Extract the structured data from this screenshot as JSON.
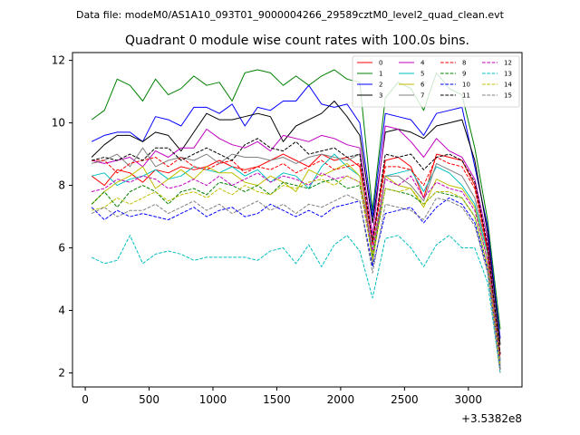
{
  "chart_data": {
    "type": "line",
    "suptitle": "Data file: modeM0/AS1A10_093T01_9000004266_29589cztM0_level2_quad_clean.evt",
    "title": "Quadrant 0 module wise count rates with 100.0s bins.",
    "xlabel": "",
    "ylabel": "",
    "x_offset_label": "+3.5382e8",
    "xlim": [
      -100,
      3420
    ],
    "ylim": [
      1.55,
      12.25
    ],
    "xticks": [
      0,
      500,
      1000,
      1500,
      2000,
      2500,
      3000
    ],
    "yticks": [
      2,
      4,
      6,
      8,
      10,
      12
    ],
    "legend_location": "top-right",
    "x": [
      50,
      150,
      250,
      350,
      450,
      550,
      650,
      750,
      850,
      950,
      1050,
      1150,
      1250,
      1350,
      1450,
      1550,
      1650,
      1750,
      1850,
      1950,
      2050,
      2150,
      2250,
      2350,
      2450,
      2550,
      2650,
      2750,
      2850,
      2950,
      3050,
      3150,
      3250
    ],
    "series": [
      {
        "name": "0",
        "color": "#ff0000",
        "dash": "solid",
        "values": [
          8.3,
          8.0,
          8.5,
          8.4,
          8.1,
          8.5,
          8.4,
          8.6,
          8.5,
          8.6,
          8.8,
          8.6,
          8.5,
          8.6,
          8.8,
          9.0,
          8.8,
          8.6,
          9.0,
          8.8,
          8.9,
          8.6,
          6.2,
          8.8,
          8.9,
          8.6,
          7.6,
          9.0,
          8.9,
          8.8,
          8.0,
          6.0,
          2.6
        ]
      },
      {
        "name": "1",
        "color": "#008000",
        "dash": "solid",
        "values": [
          10.1,
          10.4,
          11.4,
          11.2,
          10.7,
          11.4,
          10.9,
          11.1,
          11.5,
          11.2,
          11.3,
          10.7,
          11.6,
          11.7,
          11.6,
          11.2,
          11.5,
          11.2,
          11.5,
          11.7,
          11.4,
          11.3,
          7.2,
          10.8,
          11.3,
          11.1,
          10.4,
          11.6,
          11.1,
          10.9,
          9.2,
          6.9,
          3.4
        ]
      },
      {
        "name": "2",
        "color": "#0000ff",
        "dash": "solid",
        "values": [
          9.4,
          9.6,
          9.7,
          9.7,
          9.4,
          10.2,
          10.1,
          9.9,
          10.5,
          10.5,
          10.3,
          10.6,
          9.9,
          10.5,
          10.4,
          10.7,
          10.7,
          11.2,
          10.6,
          10.5,
          10.6,
          10.0,
          7.0,
          10.3,
          10.2,
          10.1,
          9.6,
          10.3,
          10.4,
          10.5,
          8.6,
          6.7,
          3.1
        ]
      },
      {
        "name": "3",
        "color": "#000000",
        "dash": "solid",
        "values": [
          8.9,
          9.3,
          9.6,
          9.6,
          9.4,
          9.7,
          9.6,
          9.1,
          9.7,
          10.3,
          10.1,
          10.1,
          10.2,
          10.3,
          10.2,
          9.4,
          9.9,
          10.1,
          10.3,
          10.7,
          10.2,
          9.6,
          6.8,
          9.7,
          9.8,
          9.7,
          9.5,
          9.9,
          10.0,
          10.1,
          8.8,
          6.5,
          2.9
        ]
      },
      {
        "name": "4",
        "color": "#bf00bf",
        "dash": "solid",
        "values": [
          8.8,
          8.7,
          8.8,
          8.9,
          8.6,
          9.1,
          8.9,
          9.2,
          9.2,
          9.8,
          9.5,
          9.3,
          9.2,
          9.4,
          9.1,
          9.6,
          9.5,
          9.4,
          9.6,
          9.5,
          9.3,
          9.2,
          6.4,
          9.9,
          9.8,
          9.4,
          8.9,
          9.5,
          9.1,
          8.9,
          8.2,
          6.3,
          2.4
        ]
      },
      {
        "name": "5",
        "color": "#00bfbf",
        "dash": "solid",
        "values": [
          8.3,
          8.4,
          8.0,
          8.2,
          8.3,
          8.5,
          8.2,
          8.3,
          8.6,
          8.5,
          8.4,
          8.6,
          8.3,
          8.5,
          8.1,
          8.4,
          8.3,
          7.9,
          8.6,
          9.0,
          8.6,
          8.3,
          5.9,
          8.3,
          8.4,
          8.5,
          7.8,
          8.6,
          8.4,
          8.0,
          7.4,
          5.8,
          2.4
        ]
      },
      {
        "name": "6",
        "color": "#bfbf00",
        "dash": "solid",
        "values": [
          7.4,
          7.8,
          8.1,
          8.3,
          8.6,
          7.9,
          8.2,
          8.5,
          8.2,
          8.6,
          8.4,
          8.4,
          8.1,
          8.0,
          8.3,
          8.1,
          7.8,
          8.5,
          8.3,
          8.5,
          8.7,
          8.3,
          5.8,
          8.3,
          8.0,
          7.9,
          7.3,
          8.2,
          8.0,
          7.9,
          7.3,
          5.6,
          2.3
        ]
      },
      {
        "name": "7",
        "color": "#808080",
        "dash": "solid",
        "values": [
          8.7,
          8.8,
          9.0,
          8.6,
          9.2,
          8.6,
          8.8,
          8.9,
          8.8,
          9.0,
          8.7,
          9.0,
          8.9,
          8.9,
          8.8,
          8.9,
          8.7,
          8.9,
          9.0,
          8.9,
          8.8,
          9.0,
          5.5,
          8.3,
          8.3,
          8.0,
          7.5,
          8.7,
          8.5,
          8.3,
          7.6,
          5.9,
          2.3
        ]
      },
      {
        "name": "8",
        "color": "#ff0000",
        "dash": "dashed",
        "values": [
          8.8,
          8.8,
          8.4,
          8.7,
          8.8,
          8.9,
          8.6,
          8.9,
          8.6,
          8.5,
          8.7,
          8.8,
          8.4,
          8.6,
          8.5,
          8.7,
          8.4,
          8.6,
          8.8,
          8.5,
          8.6,
          8.7,
          6.1,
          8.6,
          8.6,
          8.5,
          8.0,
          8.9,
          8.7,
          8.6,
          7.9,
          5.9,
          2.5
        ]
      },
      {
        "name": "9",
        "color": "#008000",
        "dash": "dashed",
        "values": [
          7.4,
          7.8,
          7.3,
          7.8,
          8.0,
          7.8,
          7.4,
          7.8,
          7.9,
          7.7,
          8.1,
          8.0,
          7.8,
          8.0,
          7.7,
          8.1,
          8.0,
          7.9,
          8.1,
          8.2,
          7.9,
          8.0,
          5.7,
          7.9,
          7.8,
          7.7,
          7.4,
          7.8,
          7.7,
          7.6,
          7.0,
          5.4,
          2.1
        ]
      },
      {
        "name": "10",
        "color": "#0000ff",
        "dash": "dashed",
        "values": [
          7.3,
          6.9,
          7.2,
          7.0,
          7.1,
          7.0,
          6.9,
          7.1,
          7.3,
          7.0,
          7.2,
          7.3,
          7.0,
          7.1,
          7.4,
          7.2,
          7.0,
          7.2,
          7.0,
          7.3,
          7.4,
          7.5,
          5.4,
          7.1,
          7.2,
          7.3,
          6.8,
          7.3,
          7.6,
          7.4,
          6.8,
          5.3,
          2.2
        ]
      },
      {
        "name": "11",
        "color": "#000000",
        "dash": "dashed",
        "values": [
          8.8,
          8.9,
          8.8,
          9.0,
          8.8,
          9.2,
          9.2,
          8.8,
          9.0,
          9.2,
          9.0,
          8.8,
          9.3,
          9.5,
          9.2,
          9.1,
          9.4,
          9.0,
          9.1,
          9.2,
          8.9,
          9.0,
          6.2,
          9.0,
          8.9,
          9.0,
          8.5,
          8.9,
          9.0,
          8.8,
          8.1,
          6.1,
          2.6
        ]
      },
      {
        "name": "12",
        "color": "#bf00bf",
        "dash": "dashed",
        "values": [
          7.8,
          7.9,
          8.2,
          8.1,
          8.3,
          8.2,
          7.9,
          8.0,
          8.2,
          8.0,
          8.3,
          8.0,
          8.2,
          8.4,
          8.1,
          8.3,
          8.2,
          8.0,
          8.4,
          8.2,
          8.3,
          8.1,
          5.9,
          8.2,
          8.0,
          8.3,
          7.6,
          8.1,
          7.9,
          7.8,
          7.2,
          5.6,
          2.1
        ]
      },
      {
        "name": "13",
        "color": "#00bfbf",
        "dash": "dashed",
        "values": [
          5.7,
          5.5,
          5.6,
          6.4,
          5.5,
          5.8,
          5.9,
          5.8,
          5.6,
          5.7,
          5.7,
          5.7,
          5.7,
          5.6,
          5.9,
          6.0,
          5.5,
          6.1,
          5.4,
          6.1,
          6.4,
          5.9,
          4.4,
          6.3,
          6.4,
          6.0,
          5.4,
          6.1,
          6.4,
          6.0,
          6.0,
          4.9,
          2.0
        ]
      },
      {
        "name": "14",
        "color": "#bfbf00",
        "dash": "dashed",
        "values": [
          7.2,
          7.3,
          7.6,
          7.4,
          7.6,
          7.8,
          7.5,
          7.7,
          7.8,
          7.6,
          7.9,
          7.7,
          8.0,
          7.8,
          7.7,
          8.0,
          7.9,
          8.1,
          8.2,
          8.0,
          8.3,
          8.1,
          5.6,
          7.9,
          7.8,
          7.9,
          7.4,
          7.8,
          7.8,
          7.6,
          7.0,
          5.4,
          2.2
        ]
      },
      {
        "name": "15",
        "color": "#808080",
        "dash": "dashed",
        "values": [
          7.1,
          7.3,
          7.0,
          7.2,
          7.2,
          7.4,
          7.1,
          7.3,
          7.5,
          7.2,
          7.4,
          7.1,
          7.3,
          7.5,
          7.2,
          7.4,
          7.1,
          7.4,
          7.3,
          7.5,
          7.7,
          7.5,
          5.2,
          7.4,
          7.3,
          7.2,
          6.9,
          7.6,
          7.5,
          7.3,
          6.7,
          5.2,
          2.0
        ]
      }
    ]
  }
}
